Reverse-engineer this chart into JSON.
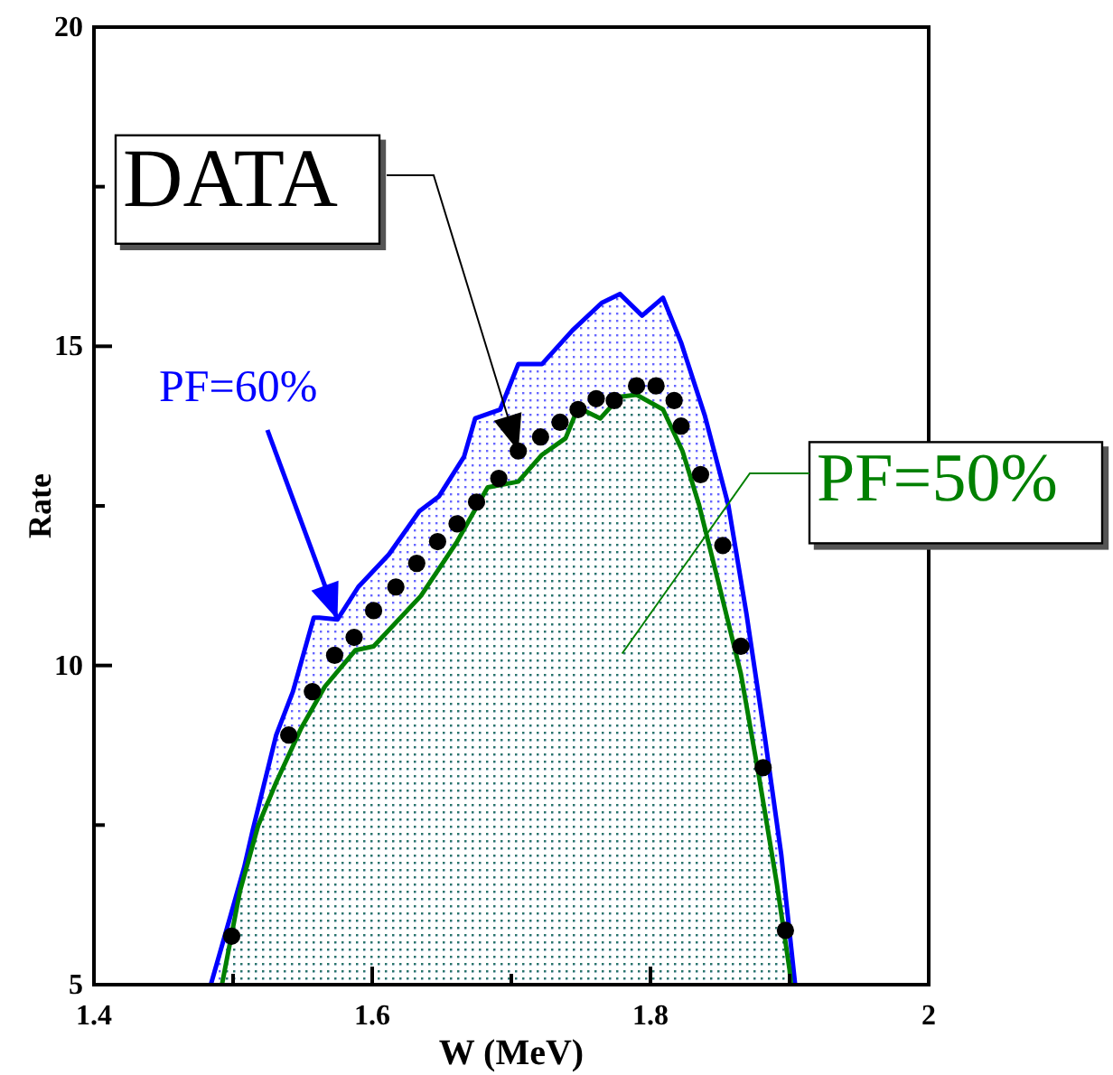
{
  "chart_data": {
    "type": "area",
    "xlabel": "W (MeV)",
    "ylabel": "Rate",
    "xlim": [
      1.4,
      2
    ],
    "ylim": [
      5,
      20
    ],
    "xticks": [
      1.4,
      {
        "value": 1.5,
        "label": null
      },
      1.6,
      {
        "value": 1.7,
        "label": null
      },
      1.8,
      {
        "value": 1.9,
        "label": null
      },
      2
    ],
    "yticks": [
      5,
      {
        "value": 7.5,
        "label": null
      },
      10,
      {
        "value": 12.5,
        "label": null
      },
      15,
      {
        "value": 17.5,
        "label": null
      },
      20
    ],
    "grid": false,
    "series": [
      {
        "name": "DATA",
        "type": "scatter",
        "marker": "circle",
        "color": "#000000",
        "x": [
          1.499,
          1.54,
          1.557,
          1.573,
          1.587,
          1.601,
          1.617,
          1.632,
          1.647,
          1.661,
          1.675,
          1.691,
          1.705,
          1.721,
          1.735,
          1.748,
          1.761,
          1.774,
          1.79,
          1.804,
          1.817,
          1.822,
          1.836,
          1.852,
          1.865,
          1.881,
          1.897
        ],
        "values": [
          5.76,
          8.91,
          9.59,
          10.16,
          10.44,
          10.86,
          11.23,
          11.6,
          11.94,
          12.22,
          12.56,
          12.93,
          13.36,
          13.58,
          13.81,
          14.01,
          14.18,
          14.15,
          14.38,
          14.38,
          14.15,
          13.75,
          12.99,
          11.88,
          10.3,
          8.4,
          5.85
        ]
      },
      {
        "name": "PF=60%",
        "color": "#0000ff",
        "x": [
          1.484,
          1.497,
          1.508,
          1.514,
          1.531,
          1.543,
          1.558,
          1.562,
          1.575,
          1.59,
          1.612,
          1.634,
          1.648,
          1.666,
          1.674,
          1.692,
          1.705,
          1.722,
          1.744,
          1.765,
          1.778,
          1.794,
          1.809,
          1.822,
          1.839,
          1.856,
          1.869,
          1.882,
          1.894,
          1.904
        ],
        "values": [
          5,
          5.99,
          6.84,
          7.41,
          8.91,
          9.59,
          10.75,
          10.75,
          10.72,
          11.23,
          11.74,
          12.42,
          12.65,
          13.27,
          13.87,
          14.01,
          14.72,
          14.72,
          15.25,
          15.68,
          15.82,
          15.48,
          15.76,
          15.06,
          13.92,
          12.51,
          10.81,
          8.91,
          7.04,
          5
        ]
      },
      {
        "name": "PF=50%",
        "color": "#008000",
        "x": [
          1.492,
          1.505,
          1.518,
          1.531,
          1.549,
          1.566,
          1.588,
          1.601,
          1.635,
          1.661,
          1.683,
          1.705,
          1.722,
          1.739,
          1.748,
          1.764,
          1.778,
          1.79,
          1.809,
          1.823,
          1.835,
          1.849,
          1.865,
          1.878,
          1.891,
          1.9,
          1.901
        ],
        "values": [
          5,
          6.47,
          7.49,
          8.17,
          9.02,
          9.67,
          10.24,
          10.3,
          11.09,
          11.94,
          12.79,
          12.88,
          13.3,
          13.56,
          14.04,
          13.87,
          14.21,
          14.24,
          14.01,
          13.36,
          12.51,
          11.29,
          9.87,
          8.26,
          6.56,
          5.23,
          5
        ]
      }
    ]
  }
}
